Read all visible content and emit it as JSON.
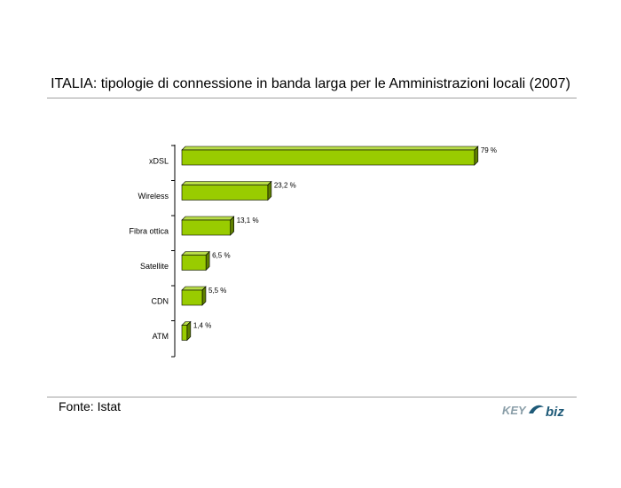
{
  "title": "ITALIA: tipologie di connessione in banda larga per le Amministrazioni locali (2007)",
  "source": "Fonte: Istat",
  "logo": {
    "text_key": "KEY",
    "text_biz": "biz",
    "color_key": "#8a9ea8",
    "color_biz": "#1e5a78"
  },
  "chart_data": {
    "type": "bar",
    "orientation": "horizontal",
    "categories": [
      "xDSL",
      "Wireless",
      "Fibra ottica",
      "Satellite",
      "CDN",
      "ATM"
    ],
    "values": [
      79,
      23.2,
      13.1,
      6.5,
      5.5,
      1.4
    ],
    "value_labels": [
      "79 %",
      "23,2 %",
      "13,1 %",
      "6,5 %",
      "5,5 %",
      "1,4 %"
    ],
    "xlim": [
      0,
      80
    ],
    "grid": false,
    "legend": "none",
    "colors": {
      "bar_front": "#99cc00",
      "bar_top": "#b8dc48",
      "bar_side": "#5f8000",
      "axis": "#000000"
    }
  }
}
